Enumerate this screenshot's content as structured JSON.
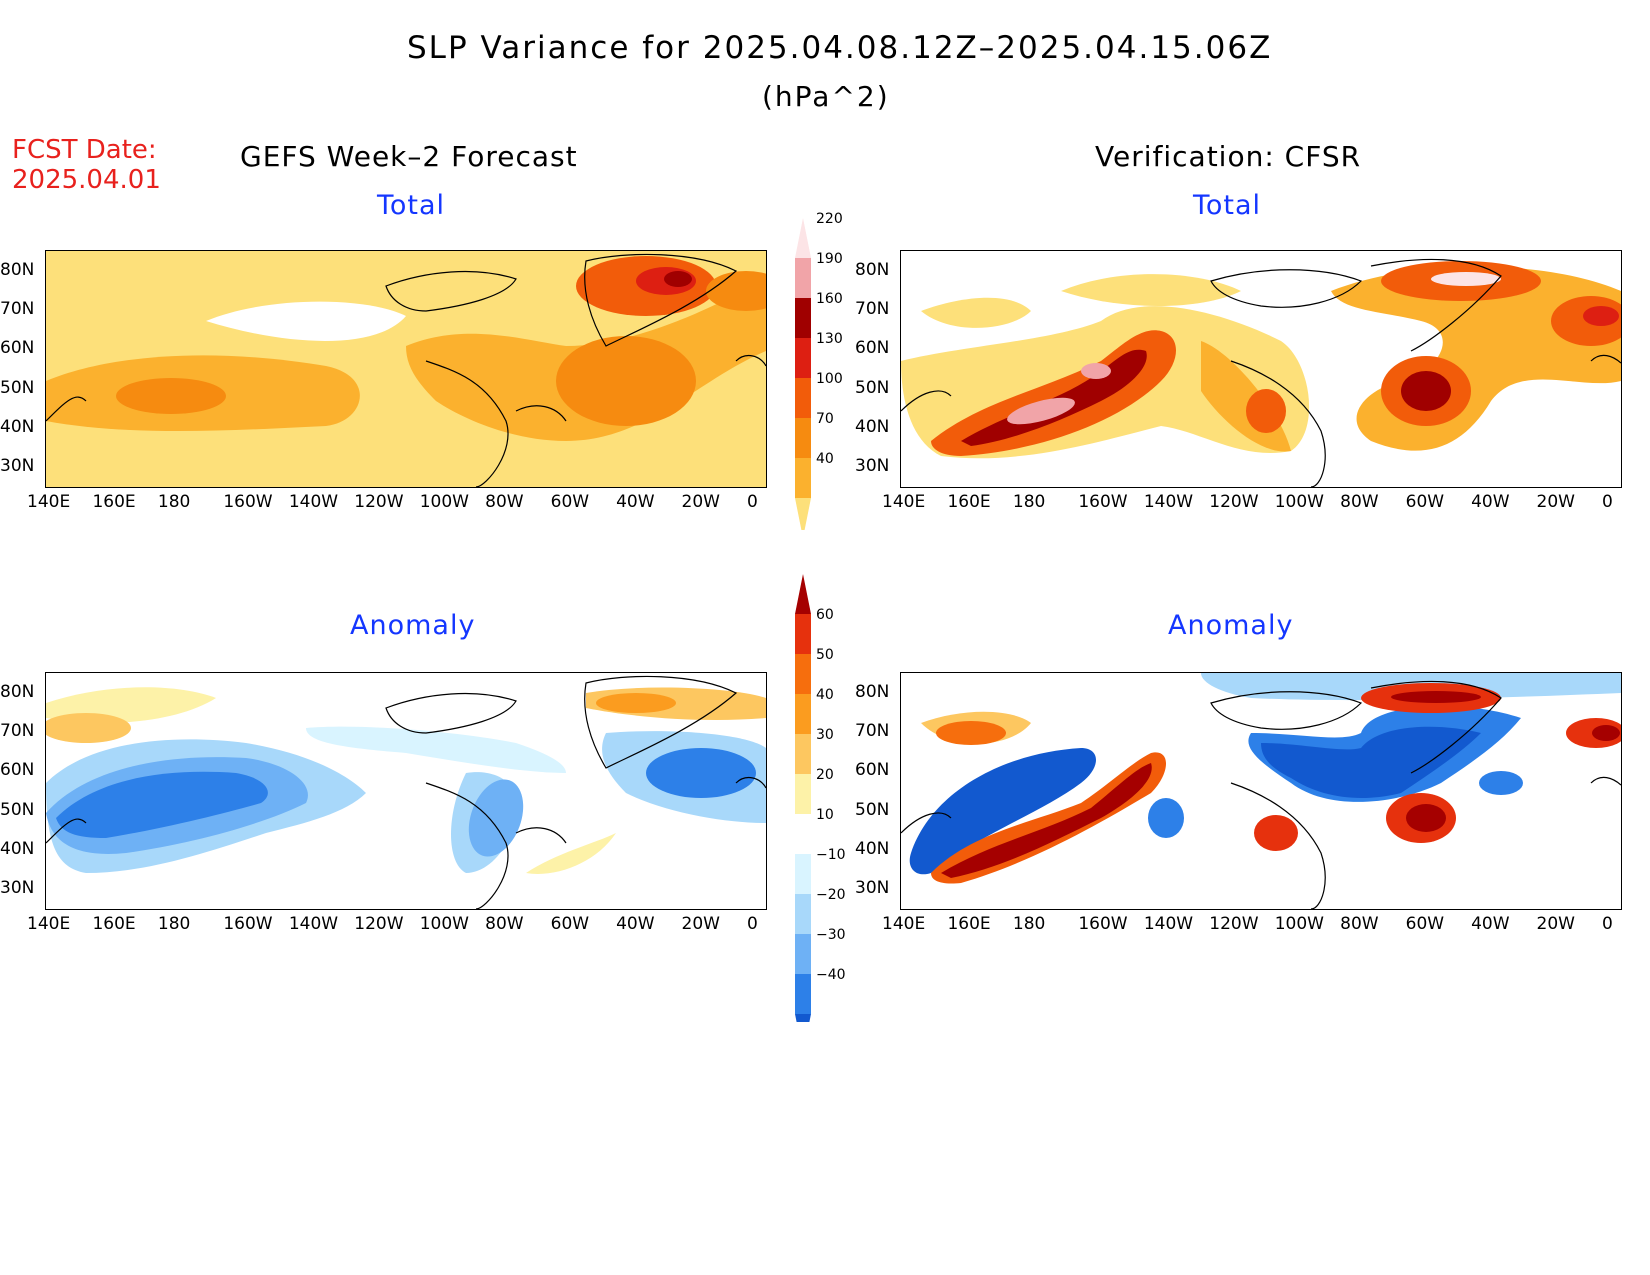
{
  "header": {
    "title": "SLP Variance for 2025.04.08.12Z–2025.04.15.06Z",
    "units": "(hPa^2)",
    "fcst_label": "FCST Date:",
    "fcst_date": "2025.04.01",
    "left_column": "GEFS Week–2 Forecast",
    "right_column": "Verification: CFSR"
  },
  "panels": {
    "top_left": {
      "label": "Total"
    },
    "top_right": {
      "label": "Total"
    },
    "bottom_left": {
      "label": "Anomaly"
    },
    "bottom_right": {
      "label": "Anomaly"
    }
  },
  "axes": {
    "lat_ticks": [
      "80N",
      "70N",
      "60N",
      "50N",
      "40N",
      "30N"
    ],
    "lon_ticks": [
      "140E",
      "160E",
      "180",
      "160W",
      "140W",
      "120W",
      "100W",
      "80W",
      "60W",
      "40W",
      "20W",
      "0"
    ],
    "lon_range": [
      "140E",
      "0"
    ],
    "lat_range": [
      "25N",
      "85N"
    ]
  },
  "colorbars": {
    "total": {
      "levels": [
        "40",
        "70",
        "100",
        "130",
        "160",
        "190",
        "220"
      ],
      "colors": [
        "#fde07a",
        "#fbb12e",
        "#f68b10",
        "#f25c0a",
        "#dd1f12",
        "#a00000",
        "#f1a4a8",
        "#fce4e6"
      ]
    },
    "anomaly": {
      "levels": [
        "−40",
        "−30",
        "−20",
        "−10",
        "10",
        "20",
        "30",
        "40",
        "50",
        "60"
      ],
      "colors": [
        "#1259cf",
        "#2d80e8",
        "#6eb1f5",
        "#a8d8fa",
        "#d9f4ff",
        "#ffffff",
        "#fdf2a8",
        "#fdc760",
        "#fb9c1f",
        "#f66e0d",
        "#e6310d",
        "#a50000"
      ]
    }
  },
  "colors": {
    "title": "#000000",
    "fcst_date": "#e8211d",
    "panel_label": "#1436ff",
    "coastline": "#000000"
  }
}
